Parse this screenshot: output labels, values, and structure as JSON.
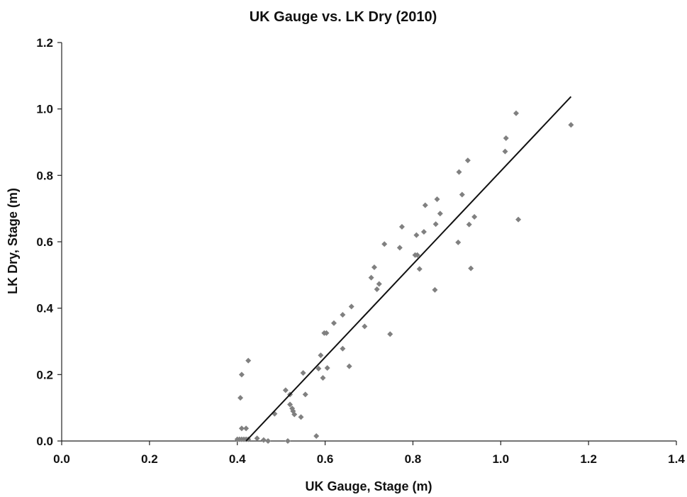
{
  "chart_data": {
    "type": "scatter",
    "title": "UK Gauge vs. LK Dry (2010)",
    "xlabel": "UK Gauge, Stage (m)",
    "ylabel": "LK Dry, Stage (m)",
    "xlim": [
      0.0,
      1.4
    ],
    "ylim": [
      0.0,
      1.2
    ],
    "x_ticks": [
      "0.0",
      "0.2",
      "0.4",
      "0.6",
      "0.8",
      "1.0",
      "1.2",
      "1.4"
    ],
    "y_ticks": [
      "0.0",
      "0.2",
      "0.4",
      "0.6",
      "0.8",
      "1.0",
      "1.2"
    ],
    "grid": false,
    "legend": "none",
    "marker_color": "#808080",
    "line_color": "#111111",
    "series": [
      {
        "marker": "diamond",
        "points": [
          [
            0.4,
            0.005
          ],
          [
            0.405,
            0.005
          ],
          [
            0.41,
            0.005
          ],
          [
            0.415,
            0.005
          ],
          [
            0.42,
            0.005
          ],
          [
            0.425,
            0.005
          ],
          [
            0.41,
            0.038
          ],
          [
            0.42,
            0.038
          ],
          [
            0.407,
            0.13
          ],
          [
            0.41,
            0.2
          ],
          [
            0.425,
            0.242
          ],
          [
            0.445,
            0.008
          ],
          [
            0.46,
            0.003
          ],
          [
            0.47,
            0.0
          ],
          [
            0.485,
            0.082
          ],
          [
            0.51,
            0.153
          ],
          [
            0.515,
            0.0
          ],
          [
            0.52,
            0.14
          ],
          [
            0.52,
            0.11
          ],
          [
            0.525,
            0.098
          ],
          [
            0.527,
            0.09
          ],
          [
            0.53,
            0.08
          ],
          [
            0.545,
            0.072
          ],
          [
            0.55,
            0.205
          ],
          [
            0.555,
            0.14
          ],
          [
            0.58,
            0.015
          ],
          [
            0.585,
            0.218
          ],
          [
            0.59,
            0.258
          ],
          [
            0.595,
            0.19
          ],
          [
            0.598,
            0.325
          ],
          [
            0.603,
            0.325
          ],
          [
            0.605,
            0.22
          ],
          [
            0.62,
            0.355
          ],
          [
            0.64,
            0.38
          ],
          [
            0.64,
            0.278
          ],
          [
            0.655,
            0.225
          ],
          [
            0.66,
            0.405
          ],
          [
            0.69,
            0.345
          ],
          [
            0.705,
            0.492
          ],
          [
            0.712,
            0.523
          ],
          [
            0.718,
            0.457
          ],
          [
            0.723,
            0.473
          ],
          [
            0.735,
            0.593
          ],
          [
            0.748,
            0.322
          ],
          [
            0.77,
            0.582
          ],
          [
            0.775,
            0.645
          ],
          [
            0.805,
            0.56
          ],
          [
            0.808,
            0.62
          ],
          [
            0.81,
            0.56
          ],
          [
            0.815,
            0.518
          ],
          [
            0.825,
            0.63
          ],
          [
            0.828,
            0.71
          ],
          [
            0.85,
            0.455
          ],
          [
            0.852,
            0.653
          ],
          [
            0.855,
            0.728
          ],
          [
            0.862,
            0.685
          ],
          [
            0.903,
            0.598
          ],
          [
            0.905,
            0.81
          ],
          [
            0.912,
            0.742
          ],
          [
            0.925,
            0.845
          ],
          [
            0.928,
            0.652
          ],
          [
            0.932,
            0.52
          ],
          [
            0.94,
            0.675
          ],
          [
            1.01,
            0.872
          ],
          [
            1.012,
            0.912
          ],
          [
            1.035,
            0.987
          ],
          [
            1.04,
            0.667
          ],
          [
            1.16,
            0.952
          ]
        ]
      }
    ],
    "trendline": {
      "x": [
        0.42,
        1.16
      ],
      "y": [
        0.0,
        1.037
      ]
    }
  }
}
